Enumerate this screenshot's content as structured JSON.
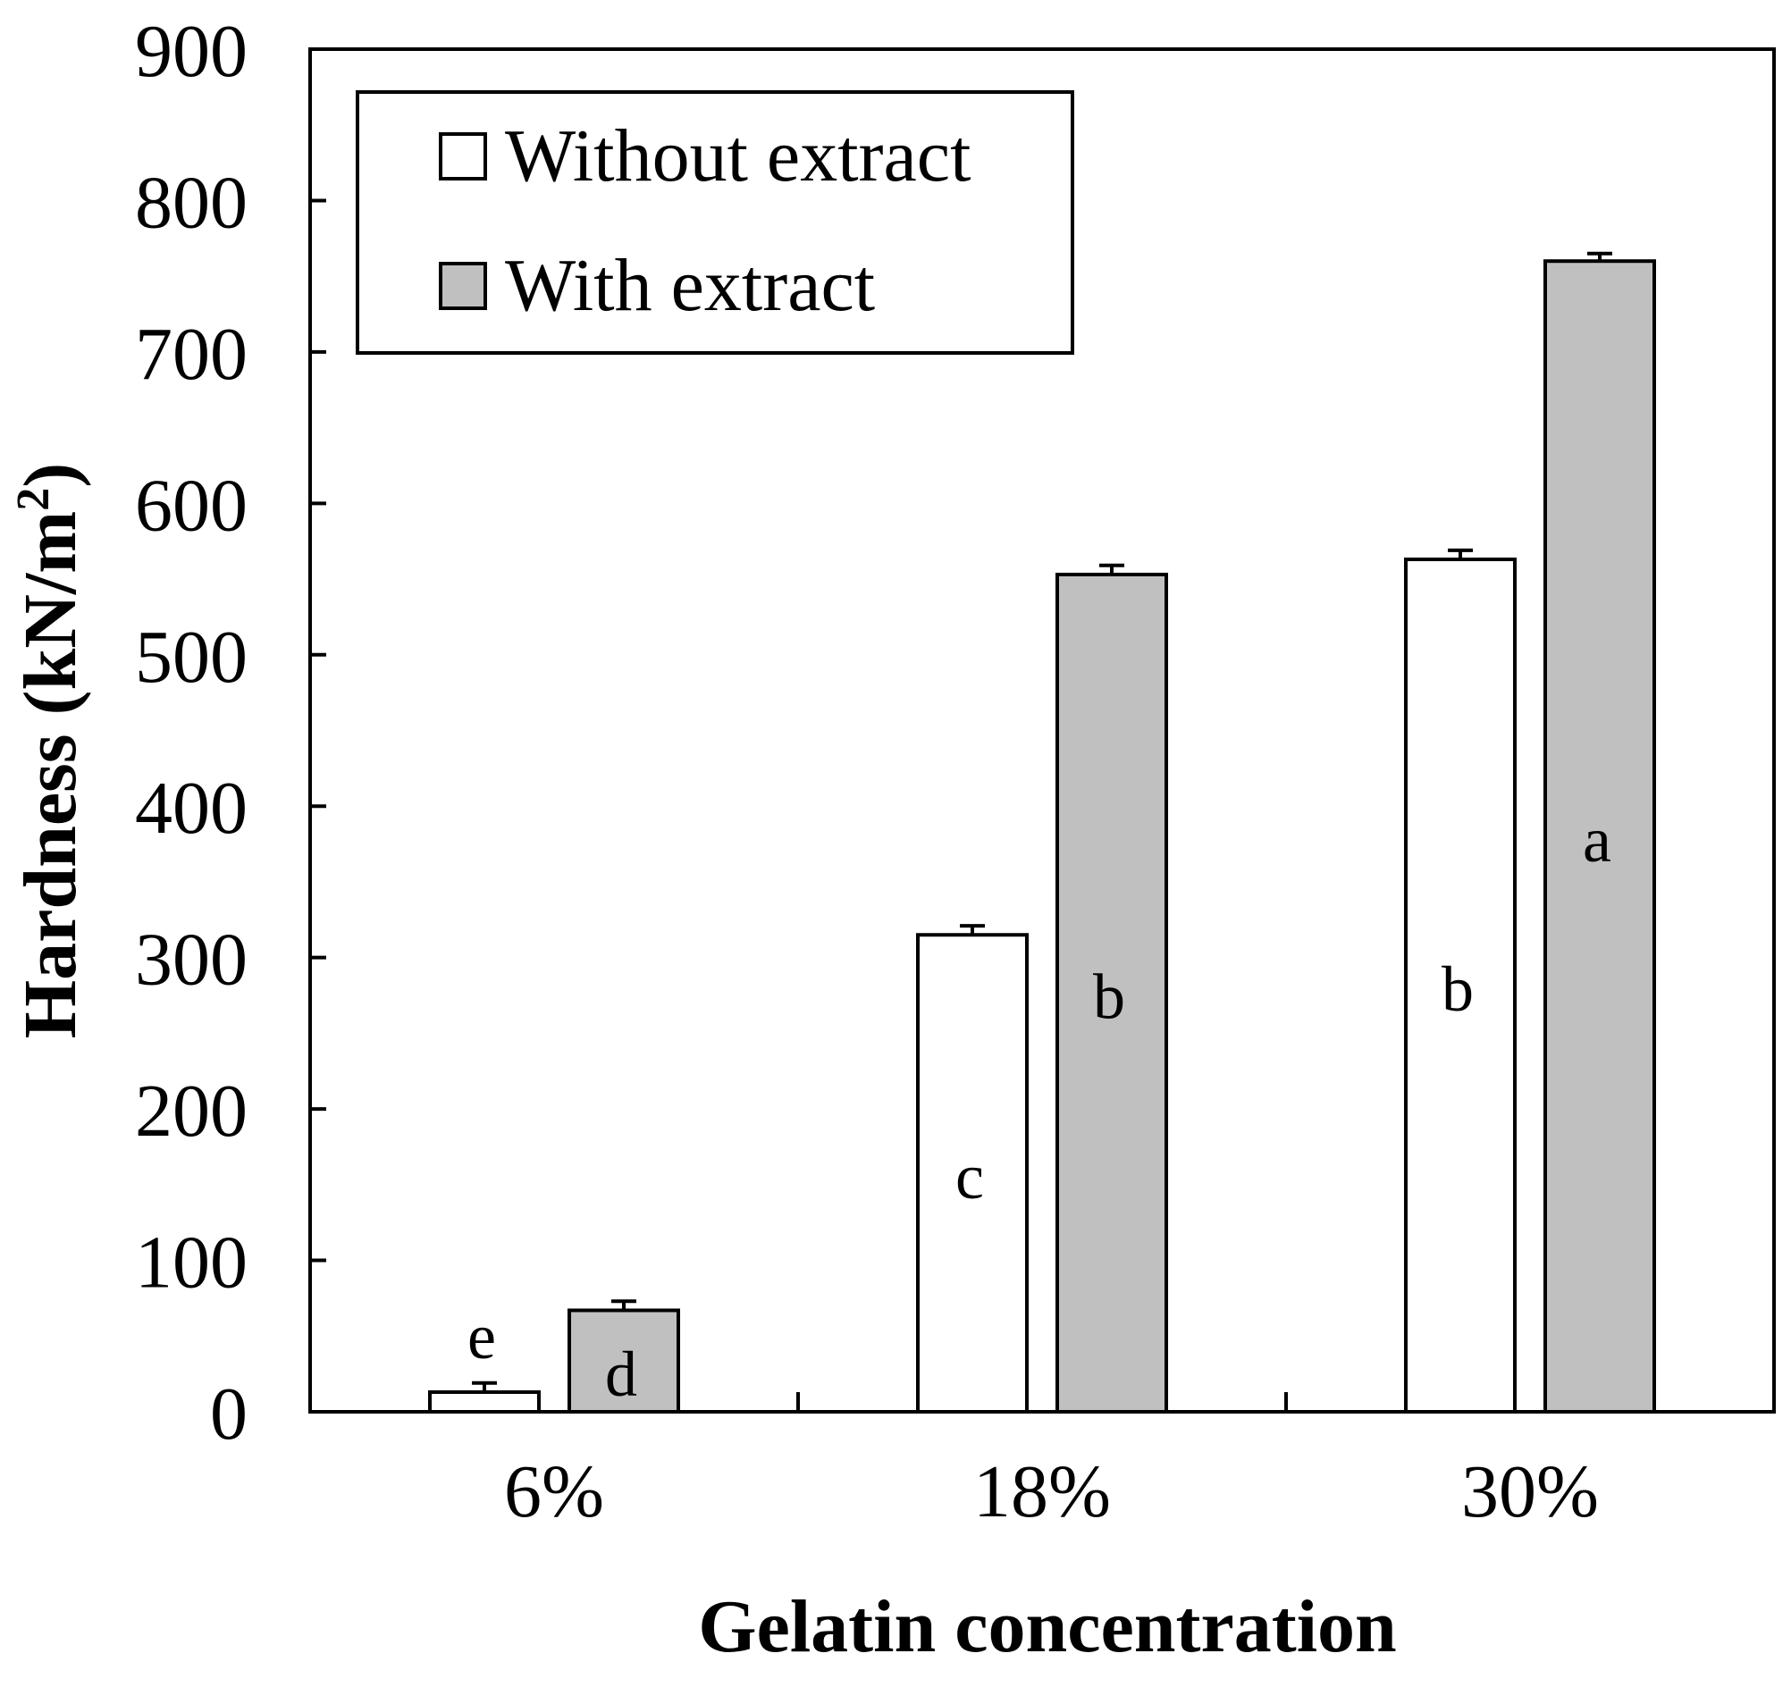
{
  "chart_data": {
    "type": "bar",
    "title": "",
    "xlabel": "Gelatin concentration",
    "ylabel": "Hardness (kN/m",
    "ylabel_superscript": "2",
    "ylabel_suffix": ")",
    "ylim": [
      0,
      900
    ],
    "yticks": [
      0,
      100,
      200,
      300,
      400,
      500,
      600,
      700,
      800,
      900
    ],
    "categories": [
      "6%",
      "18%",
      "30%"
    ],
    "series": [
      {
        "name": "Without extract",
        "color": "#ffffff",
        "values": [
          13,
          315,
          563
        ],
        "errors": [
          6,
          6,
          6
        ],
        "letters": [
          "e",
          "c",
          "b"
        ]
      },
      {
        "name": "With extract",
        "color": "#c0c0c0",
        "values": [
          67,
          553,
          760
        ],
        "errors": [
          6,
          6,
          5
        ],
        "letters": [
          "d",
          "b",
          "a"
        ]
      }
    ],
    "legend": {
      "position": "top-left"
    },
    "grid": false
  }
}
